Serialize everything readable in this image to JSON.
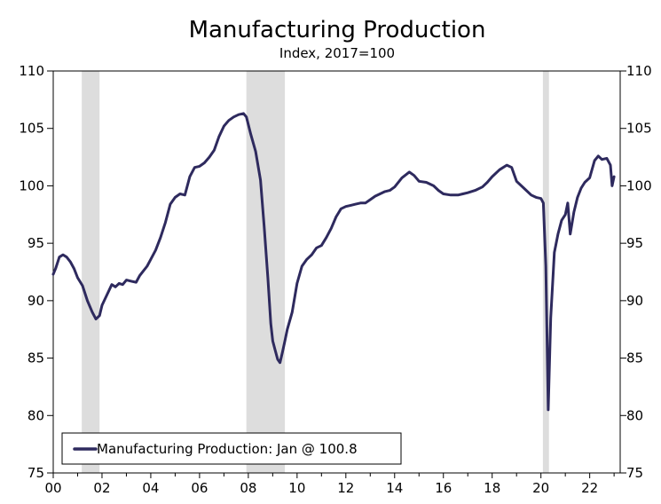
{
  "chart_data": {
    "type": "line",
    "title": "Manufacturing Production",
    "subtitle": "Index, 2017=100",
    "xlabel": "",
    "ylabel": "",
    "xlim": [
      2000,
      2023.25
    ],
    "ylim": [
      75,
      110
    ],
    "x_ticks": [
      {
        "value": 2000,
        "label": "00"
      },
      {
        "value": 2002,
        "label": "02"
      },
      {
        "value": 2004,
        "label": "04"
      },
      {
        "value": 2006,
        "label": "06"
      },
      {
        "value": 2008,
        "label": "08"
      },
      {
        "value": 2010,
        "label": "10"
      },
      {
        "value": 2012,
        "label": "12"
      },
      {
        "value": 2014,
        "label": "14"
      },
      {
        "value": 2016,
        "label": "16"
      },
      {
        "value": 2018,
        "label": "18"
      },
      {
        "value": 2020,
        "label": "20"
      },
      {
        "value": 2022,
        "label": "22"
      }
    ],
    "y_ticks": [
      {
        "value": 75,
        "label": "75"
      },
      {
        "value": 80,
        "label": "80"
      },
      {
        "value": 85,
        "label": "85"
      },
      {
        "value": 90,
        "label": "90"
      },
      {
        "value": 95,
        "label": "95"
      },
      {
        "value": 100,
        "label": "100"
      },
      {
        "value": 105,
        "label": "105"
      },
      {
        "value": 110,
        "label": "110"
      }
    ],
    "recessions": [
      [
        2001.17,
        2001.9
      ],
      [
        2007.92,
        2009.5
      ],
      [
        2020.08,
        2020.33
      ]
    ],
    "legend": {
      "label": "Manufacturing Production: Jan @ 100.8",
      "position": "bottom-left"
    },
    "series": [
      {
        "name": "Manufacturing Production",
        "color": "#2e2a5e",
        "x": [
          2000.0,
          2000.1,
          2000.25,
          2000.4,
          2000.55,
          2000.7,
          2000.85,
          2001.0,
          2001.2,
          2001.4,
          2001.6,
          2001.75,
          2001.9,
          2002.0,
          2002.2,
          2002.4,
          2002.55,
          2002.7,
          2002.85,
          2003.0,
          2003.2,
          2003.4,
          2003.55,
          2003.7,
          2003.85,
          2004.0,
          2004.2,
          2004.4,
          2004.6,
          2004.8,
          2005.0,
          2005.2,
          2005.4,
          2005.6,
          2005.8,
          2006.0,
          2006.2,
          2006.4,
          2006.6,
          2006.8,
          2007.0,
          2007.2,
          2007.4,
          2007.6,
          2007.8,
          2007.92,
          2008.1,
          2008.3,
          2008.5,
          2008.65,
          2008.8,
          2008.92,
          2009.0,
          2009.1,
          2009.2,
          2009.3,
          2009.4,
          2009.5,
          2009.6,
          2009.8,
          2010.0,
          2010.2,
          2010.4,
          2010.6,
          2010.8,
          2011.0,
          2011.2,
          2011.4,
          2011.6,
          2011.8,
          2012.0,
          2012.2,
          2012.4,
          2012.6,
          2012.8,
          2013.0,
          2013.2,
          2013.4,
          2013.6,
          2013.8,
          2014.0,
          2014.3,
          2014.6,
          2014.8,
          2015.0,
          2015.3,
          2015.6,
          2015.8,
          2016.0,
          2016.3,
          2016.6,
          2016.8,
          2017.0,
          2017.3,
          2017.6,
          2017.8,
          2018.0,
          2018.3,
          2018.6,
          2018.8,
          2019.0,
          2019.3,
          2019.6,
          2019.8,
          2020.0,
          2020.1,
          2020.2,
          2020.3,
          2020.4,
          2020.55,
          2020.7,
          2020.85,
          2021.0,
          2021.1,
          2021.2,
          2021.35,
          2021.5,
          2021.65,
          2021.8,
          2022.0,
          2022.2,
          2022.35,
          2022.5,
          2022.7,
          2022.85,
          2022.92,
          2023.0
        ],
        "values": [
          92.3,
          92.8,
          93.8,
          94.0,
          93.8,
          93.4,
          92.8,
          92.0,
          91.3,
          90.0,
          89.0,
          88.4,
          88.7,
          89.6,
          90.5,
          91.4,
          91.2,
          91.5,
          91.4,
          91.8,
          91.7,
          91.6,
          92.2,
          92.6,
          93.0,
          93.6,
          94.4,
          95.5,
          96.8,
          98.4,
          99.0,
          99.3,
          99.2,
          100.8,
          101.6,
          101.7,
          102.0,
          102.5,
          103.1,
          104.3,
          105.2,
          105.7,
          106.0,
          106.2,
          106.3,
          106.0,
          104.5,
          103.0,
          100.5,
          96.5,
          92.0,
          88.0,
          86.5,
          85.7,
          84.9,
          84.6,
          85.5,
          86.5,
          87.5,
          89.0,
          91.5,
          93.0,
          93.6,
          94.0,
          94.6,
          94.8,
          95.5,
          96.3,
          97.3,
          98.0,
          98.2,
          98.3,
          98.4,
          98.5,
          98.5,
          98.8,
          99.1,
          99.3,
          99.5,
          99.6,
          99.9,
          100.7,
          101.2,
          100.9,
          100.4,
          100.3,
          100.0,
          99.6,
          99.3,
          99.2,
          99.2,
          99.3,
          99.4,
          99.6,
          99.9,
          100.3,
          100.8,
          101.4,
          101.8,
          101.6,
          100.4,
          99.8,
          99.2,
          99.0,
          98.9,
          98.5,
          93.0,
          80.5,
          88.5,
          94.2,
          95.8,
          97.0,
          97.5,
          98.5,
          95.8,
          97.7,
          99.0,
          99.8,
          100.3,
          100.7,
          102.2,
          102.6,
          102.3,
          102.4,
          101.8,
          100.0,
          100.8
        ]
      }
    ]
  }
}
